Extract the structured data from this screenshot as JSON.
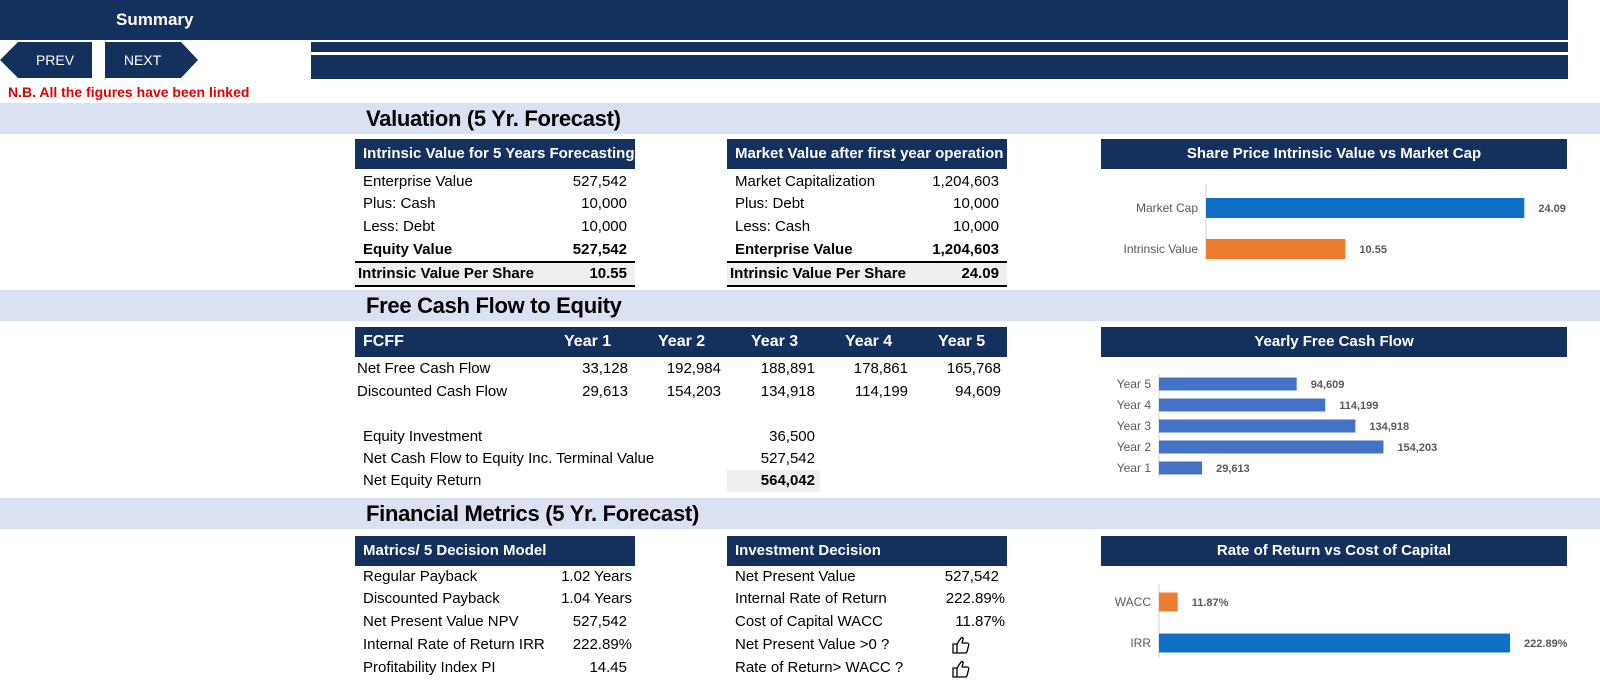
{
  "header": {
    "title": "Summary"
  },
  "nav": {
    "prev_label": "PREV",
    "next_label": "NEXT"
  },
  "note": "N.B. All the figures have been linked",
  "sections": {
    "valuation": "Valuation (5 Yr. Forecast)",
    "fcfe": "Free Cash Flow to Equity",
    "metrics": "Financial Metrics (5 Yr. Forecast)"
  },
  "intrinsic": {
    "header": "Intrinsic Value for 5 Years Forecasting",
    "rows": [
      {
        "label": "Enterprise Value",
        "value": "527,542"
      },
      {
        "label": "Plus: Cash",
        "value": "10,000"
      },
      {
        "label": "Less: Debt",
        "value": "10,000"
      },
      {
        "label": "Equity Value",
        "value": "527,542"
      }
    ],
    "per_share": {
      "label": "Intrinsic Value Per Share",
      "value": "10.55"
    }
  },
  "market": {
    "header": "Market Value after first year operation",
    "rows": [
      {
        "label": "Market Capitalization",
        "value": "1,204,603"
      },
      {
        "label": "Plus: Debt",
        "value": "10,000"
      },
      {
        "label": "Less: Cash",
        "value": "10,000"
      },
      {
        "label": "Enterprise Value",
        "value": "1,204,603"
      }
    ],
    "per_share": {
      "label": "Intrinsic Value Per Share",
      "value": "24.09"
    }
  },
  "fcff": {
    "header": "FCFF",
    "years": [
      "Year 1",
      "Year 2",
      "Year 3",
      "Year 4",
      "Year 5"
    ],
    "rows": [
      {
        "label": "Net Free Cash Flow",
        "values": [
          "33,128",
          "192,984",
          "188,891",
          "178,861",
          "165,768"
        ]
      },
      {
        "label": "Discounted Cash Flow",
        "values": [
          "29,613",
          "154,203",
          "134,918",
          "114,199",
          "94,609"
        ]
      }
    ],
    "equity": [
      {
        "label": "Equity Investment",
        "value": "36,500"
      },
      {
        "label": "Net Cash Flow to Equity Inc. Terminal Value",
        "value": "527,542"
      },
      {
        "label": "Net Equity Return",
        "value": "564,042"
      }
    ]
  },
  "decision_model": {
    "header": "Matrics/ 5 Decision Model",
    "rows": [
      {
        "label": "Regular Payback",
        "value": "1.02 Years"
      },
      {
        "label": "Discounted Payback",
        "value": "1.04 Years"
      },
      {
        "label": "Net Present Value NPV",
        "value": "527,542"
      },
      {
        "label": "Internal Rate of Return IRR",
        "value": "222.89%"
      },
      {
        "label": "Profitability Index PI",
        "value": "14.45"
      }
    ]
  },
  "investment": {
    "header": "Investment Decision",
    "rows": [
      {
        "label": "Net Present Value",
        "value": "527,542"
      },
      {
        "label": "Internal Rate of Return",
        "value": "222.89%"
      },
      {
        "label": "Cost of Capital WACC",
        "value": "11.87%"
      },
      {
        "label": "Net Present Value >0 ?",
        "icon": "thumbs-up-icon"
      },
      {
        "label": "Rate of Return> WACC ?",
        "icon": "thumbs-up-icon"
      }
    ]
  },
  "colors": {
    "navy": "#14305c",
    "band": "#d9e1f2",
    "blue": "#0f6fc6",
    "orange": "#ed7d31",
    "fcf_blue": "#4472c4",
    "note_red": "#e00000"
  },
  "chart_data": [
    {
      "type": "bar",
      "title": "Share Price Intrinsic Value vs Market Cap",
      "categories": [
        "Market Cap",
        "Intrinsic Value"
      ],
      "values": [
        24.09,
        10.55
      ],
      "labels": [
        "24.09",
        "10.55"
      ],
      "xlim": [
        0,
        28
      ],
      "colors": [
        "#0f6fc6",
        "#ed7d31"
      ]
    },
    {
      "type": "bar",
      "title": "Yearly Free Cash Flow",
      "categories": [
        "Year 5",
        "Year 4",
        "Year 3",
        "Year 2",
        "Year 1"
      ],
      "values": [
        94609,
        114199,
        134918,
        154203,
        29613
      ],
      "labels": [
        "94,609",
        "114,199",
        "134,918",
        "154,203",
        "29,613"
      ],
      "xlim": [
        0,
        180000
      ],
      "colors": [
        "#4472c4",
        "#4472c4",
        "#4472c4",
        "#4472c4",
        "#4472c4"
      ]
    },
    {
      "type": "bar",
      "title": "Rate of Return vs Cost of Capital",
      "categories": [
        "WACC",
        "IRR"
      ],
      "values": [
        11.87,
        222.89
      ],
      "labels": [
        "11.87%",
        "222.89%"
      ],
      "xlim": [
        0,
        240
      ],
      "colors": [
        "#ed7d31",
        "#0f6fc6"
      ]
    }
  ]
}
